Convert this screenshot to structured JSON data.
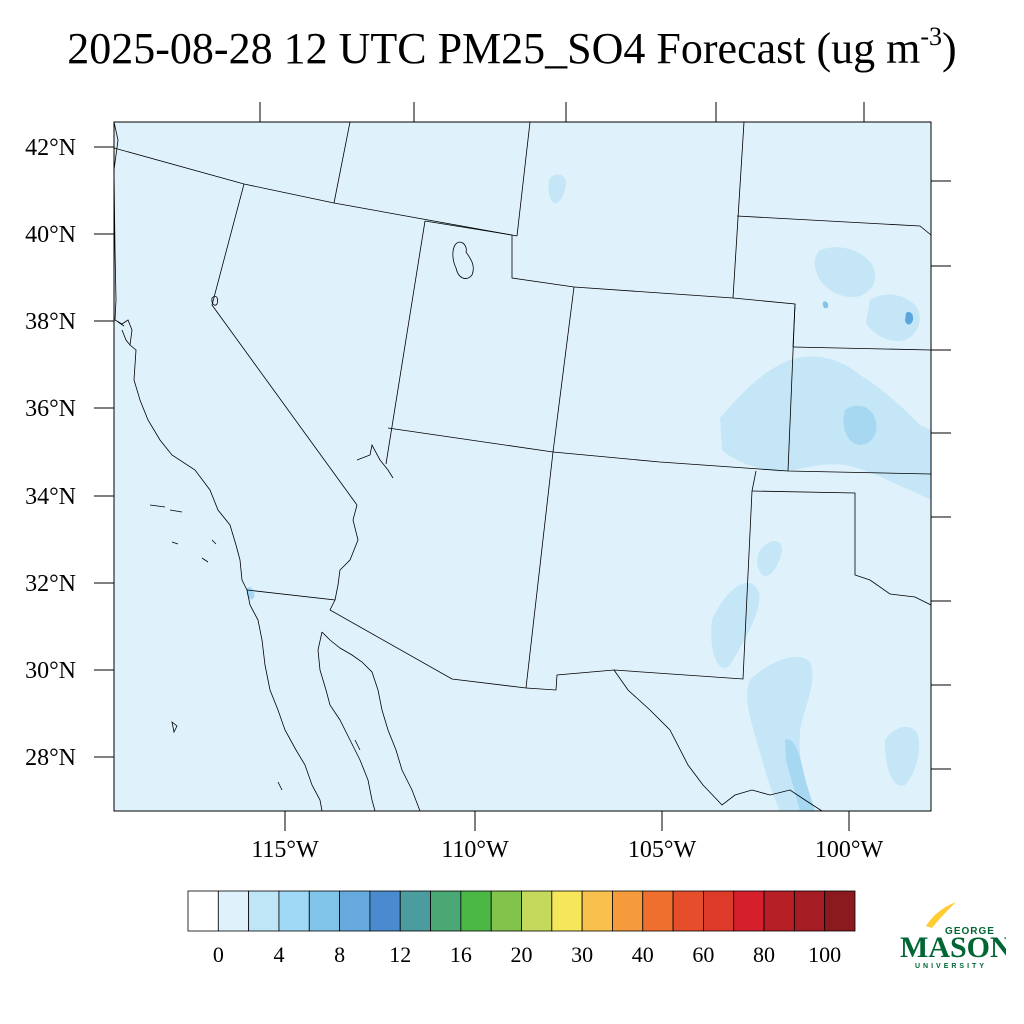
{
  "title": {
    "text": "2025-08-28 12 UTC PM25_SO4 Forecast (ug m",
    "superscript": "-3",
    "close": ")"
  },
  "map": {
    "lat_labels": [
      "42°N",
      "40°N",
      "38°N",
      "36°N",
      "34°N",
      "32°N",
      "30°N",
      "28°N"
    ],
    "lon_labels": [
      "115°W",
      "110°W",
      "105°W",
      "100°W"
    ],
    "background_color": "#dff2fc",
    "shade_colors": {
      "light": "#c4e6f7",
      "medium": "#a6d8f2",
      "darker": "#5aa5dd"
    }
  },
  "colorbar": {
    "colors": [
      "#ffffff",
      "#dff2fc",
      "#bfe6f7",
      "#9fd9f5",
      "#80c4ea",
      "#65a9dd",
      "#4a8bcf",
      "#4b9c9e",
      "#49a873",
      "#4bb846",
      "#82c34b",
      "#c5d95c",
      "#f5e65a",
      "#f8c04c",
      "#f59b3c",
      "#ef6f2e",
      "#e64e2b",
      "#de3a2a",
      "#d51f2d",
      "#b71f27",
      "#a51c23",
      "#8b1a1e"
    ],
    "labels": [
      "0",
      "4",
      "8",
      "12",
      "16",
      "20",
      "30",
      "40",
      "60",
      "80",
      "100"
    ]
  },
  "logo": {
    "line1": "GEORGE",
    "line2": "MASON",
    "line3": "UNIVERSITY",
    "green": "#006633",
    "gold": "#ffcc33"
  }
}
